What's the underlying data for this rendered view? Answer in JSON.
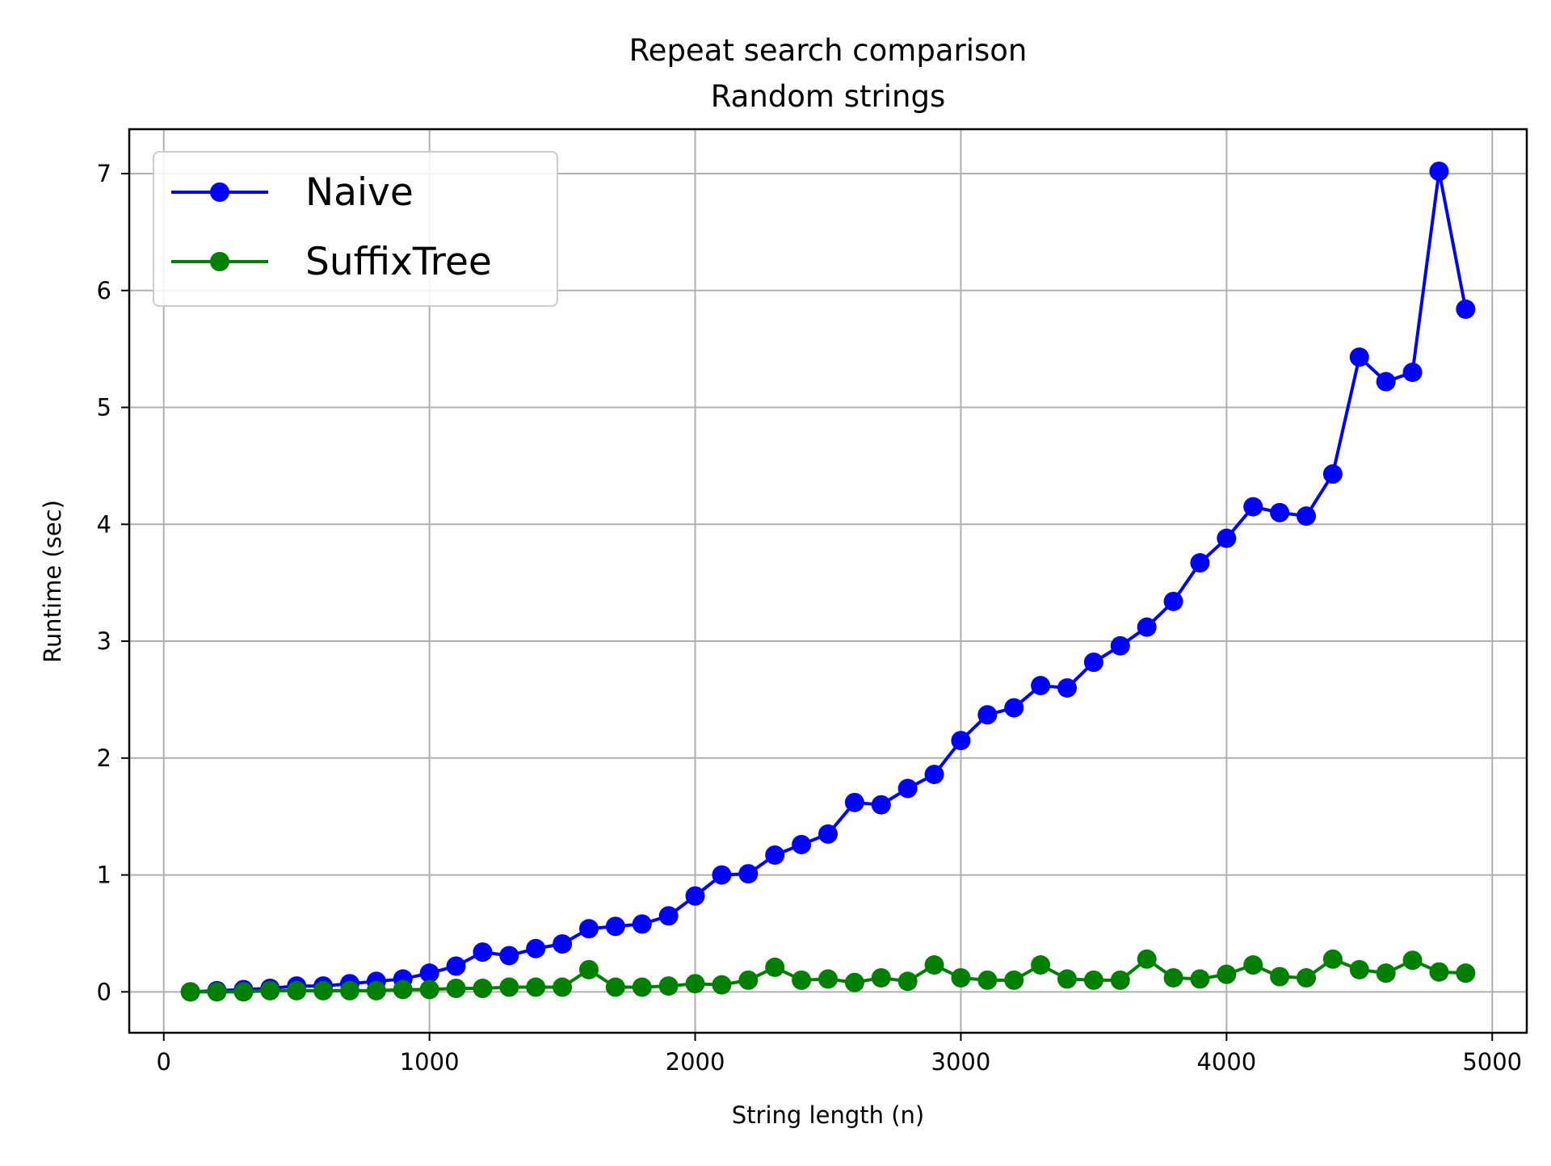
{
  "chart_data": {
    "type": "line",
    "title": "Repeat search comparison",
    "subtitle": "Random strings",
    "xlabel": "String length (n)",
    "ylabel": "Runtime (sec)",
    "xlim": [
      -130,
      5130
    ],
    "ylim": [
      -0.35,
      7.38
    ],
    "xticks": [
      0,
      1000,
      2000,
      3000,
      4000,
      5000
    ],
    "yticks": [
      0,
      1,
      2,
      3,
      4,
      5,
      6,
      7
    ],
    "grid": true,
    "legend_position": "top-left",
    "x": [
      100,
      200,
      300,
      400,
      500,
      600,
      700,
      800,
      900,
      1000,
      1100,
      1200,
      1300,
      1400,
      1500,
      1600,
      1700,
      1800,
      1900,
      2000,
      2100,
      2200,
      2300,
      2400,
      2500,
      2600,
      2700,
      2800,
      2900,
      3000,
      3100,
      3200,
      3300,
      3400,
      3500,
      3600,
      3700,
      3800,
      3900,
      4000,
      4100,
      4200,
      4300,
      4400,
      4500,
      4600,
      4700,
      4800,
      4900
    ],
    "series": [
      {
        "name": "Naive",
        "color": "#0000ff",
        "values": [
          0.0,
          0.01,
          0.02,
          0.03,
          0.05,
          0.05,
          0.07,
          0.09,
          0.11,
          0.16,
          0.22,
          0.34,
          0.31,
          0.37,
          0.41,
          0.54,
          0.56,
          0.58,
          0.65,
          0.82,
          1.0,
          1.01,
          1.17,
          1.26,
          1.35,
          1.62,
          1.6,
          1.74,
          1.86,
          2.15,
          2.37,
          2.43,
          2.62,
          2.6,
          2.82,
          2.96,
          3.12,
          3.34,
          3.67,
          3.88,
          4.15,
          4.1,
          4.07,
          4.43,
          5.43,
          5.22,
          5.3,
          7.02,
          5.84
        ]
      },
      {
        "name": "SuffixTree",
        "color": "#008000",
        "values": [
          0.0,
          0.0,
          0.0,
          0.01,
          0.01,
          0.01,
          0.01,
          0.01,
          0.02,
          0.02,
          0.03,
          0.03,
          0.04,
          0.04,
          0.04,
          0.19,
          0.04,
          0.04,
          0.05,
          0.07,
          0.06,
          0.1,
          0.21,
          0.1,
          0.11,
          0.08,
          0.12,
          0.09,
          0.23,
          0.12,
          0.1,
          0.1,
          0.23,
          0.11,
          0.1,
          0.1,
          0.28,
          0.12,
          0.11,
          0.15,
          0.23,
          0.13,
          0.12,
          0.28,
          0.19,
          0.16,
          0.27,
          0.17,
          0.16
        ]
      }
    ]
  }
}
